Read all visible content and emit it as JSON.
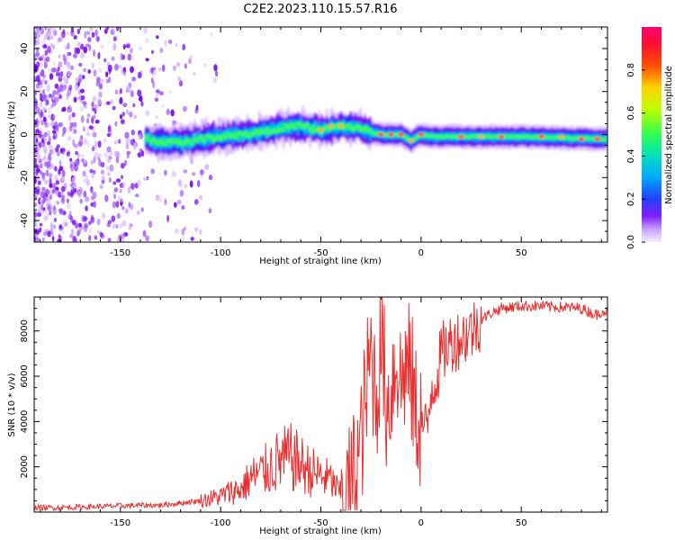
{
  "title": "C2E2.2023.110.15.57.R16",
  "colors": {
    "snr_line": "#e83030",
    "spectrogram_palette": [
      "#f5f0ff",
      "#d8b8ff",
      "#a060ff",
      "#7000f0",
      "#2030ff",
      "#00a0ff",
      "#00e0c0",
      "#40ff40",
      "#d0ff00",
      "#ffa000",
      "#ff2020",
      "#ff0070"
    ]
  },
  "chart_data": [
    {
      "type": "heatmap",
      "xlabel": "Height of straight line (km)",
      "ylabel": "Frequency (Hz)",
      "xlim": [
        -193,
        93
      ],
      "ylim": [
        -50,
        50
      ],
      "xticks": [
        -150,
        -100,
        -50,
        0,
        50
      ],
      "yticks": [
        -40,
        -20,
        0,
        20,
        40
      ],
      "colorbar": {
        "label": "Normalized spectral amplitude",
        "range": [
          0,
          1
        ],
        "ticks": [
          "0.0",
          "0.2",
          "0.4",
          "0.6",
          "0.8"
        ]
      },
      "centerline": [
        [
          -135,
          -3
        ],
        [
          -120,
          -4
        ],
        [
          -110,
          -2
        ],
        [
          -100,
          -1
        ],
        [
          -90,
          0
        ],
        [
          -80,
          1
        ],
        [
          -70,
          3
        ],
        [
          -60,
          4
        ],
        [
          -50,
          2
        ],
        [
          -40,
          4
        ],
        [
          -30,
          3
        ],
        [
          -25,
          1
        ],
        [
          -20,
          0
        ],
        [
          -10,
          0
        ],
        [
          -5,
          -3
        ],
        [
          0,
          0
        ],
        [
          5,
          -1
        ],
        [
          20,
          -1
        ],
        [
          50,
          -1
        ],
        [
          90,
          -2
        ]
      ],
      "noise_extent_x": [
        -193,
        -100
      ]
    },
    {
      "type": "line",
      "xlabel": "Height of straight line (km)",
      "ylabel": "SNR (10 * v/v)",
      "xlim": [
        -193,
        93
      ],
      "ylim": [
        0,
        9500
      ],
      "xticks": [
        -150,
        -100,
        -50,
        0,
        50
      ],
      "yticks": [
        2000,
        4000,
        6000,
        8000
      ],
      "x": [
        -193,
        -180,
        -160,
        -140,
        -130,
        -120,
        -110,
        -100,
        -95,
        -90,
        -85,
        -80,
        -75,
        -70,
        -65,
        -60,
        -55,
        -50,
        -45,
        -40,
        -37,
        -35,
        -30,
        -27,
        -25,
        -22,
        -20,
        -17,
        -15,
        -12,
        -10,
        -8,
        -5,
        -3,
        0,
        3,
        5,
        8,
        10,
        15,
        20,
        25,
        30,
        35,
        40,
        50,
        60,
        70,
        80,
        85,
        88,
        90,
        93
      ],
      "y": [
        200,
        200,
        250,
        300,
        300,
        400,
        500,
        700,
        900,
        1000,
        1500,
        1700,
        2000,
        2300,
        2400,
        2100,
        1800,
        1600,
        1400,
        800,
        600,
        1000,
        3000,
        5500,
        7000,
        5000,
        8000,
        4500,
        5500,
        7000,
        5500,
        6500,
        6000,
        4500,
        4000,
        3500,
        5500,
        6000,
        7000,
        7500,
        7700,
        8000,
        8500,
        8800,
        9000,
        9100,
        9100,
        9050,
        9000,
        8800,
        8700,
        8900,
        8850
      ]
    }
  ]
}
